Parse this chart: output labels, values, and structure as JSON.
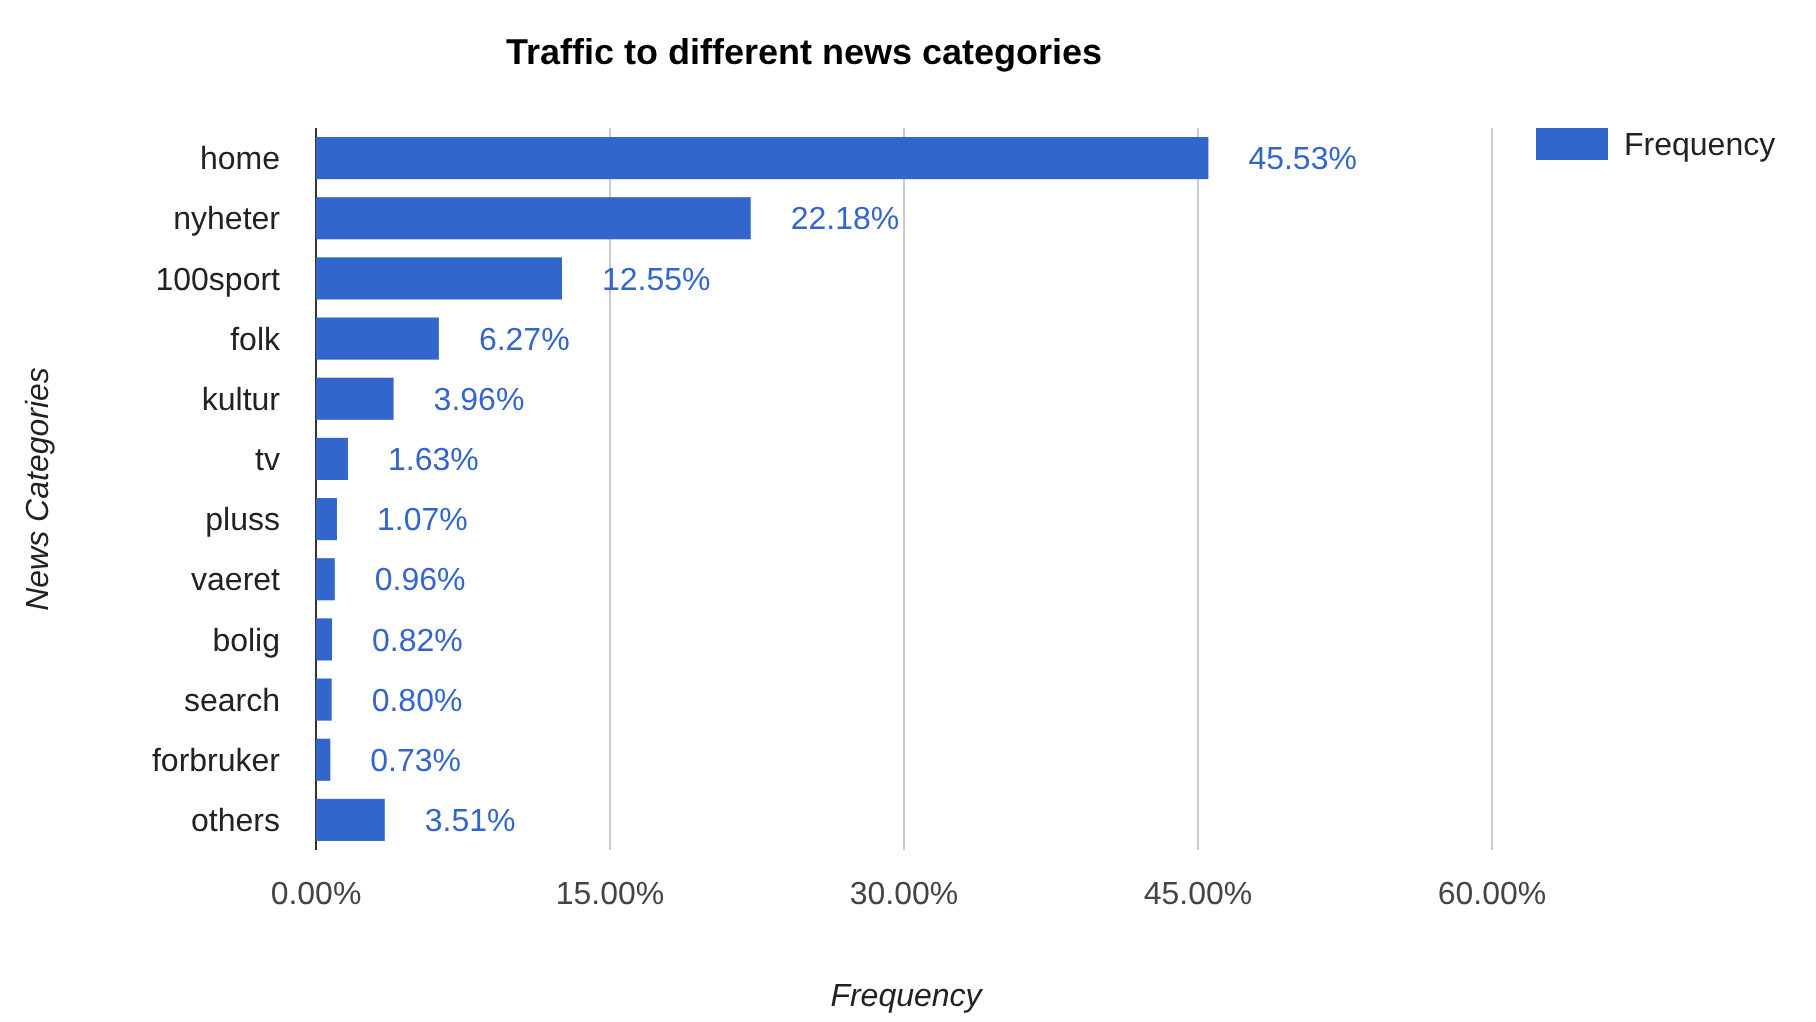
{
  "chart_data": {
    "type": "bar",
    "orientation": "horizontal",
    "title": "Traffic to different news categories",
    "xlabel": "Frequency",
    "ylabel": "News Categories",
    "categories": [
      "home",
      "nyheter",
      "100sport",
      "folk",
      "kultur",
      "tv",
      "pluss",
      "vaeret",
      "bolig",
      "search",
      "forbruker",
      "others"
    ],
    "series": [
      {
        "name": "Frequency",
        "color": "#3366cc",
        "values": [
          45.53,
          22.18,
          12.55,
          6.27,
          3.96,
          1.63,
          1.07,
          0.96,
          0.82,
          0.8,
          0.73,
          3.51
        ],
        "value_labels": [
          "45.53%",
          "22.18%",
          "12.55%",
          "6.27%",
          "3.96%",
          "1.63%",
          "1.07%",
          "0.96%",
          "0.82%",
          "0.80%",
          "0.73%",
          "3.51%"
        ]
      }
    ],
    "xlim": [
      0,
      60
    ],
    "xticks": [
      {
        "value": 0,
        "label": "0.00%"
      },
      {
        "value": 15,
        "label": "15.00%"
      },
      {
        "value": 30,
        "label": "30.00%"
      },
      {
        "value": 45,
        "label": "45.00%"
      },
      {
        "value": 60,
        "label": "60.00%"
      }
    ],
    "grid": "x",
    "legend": "top right"
  }
}
